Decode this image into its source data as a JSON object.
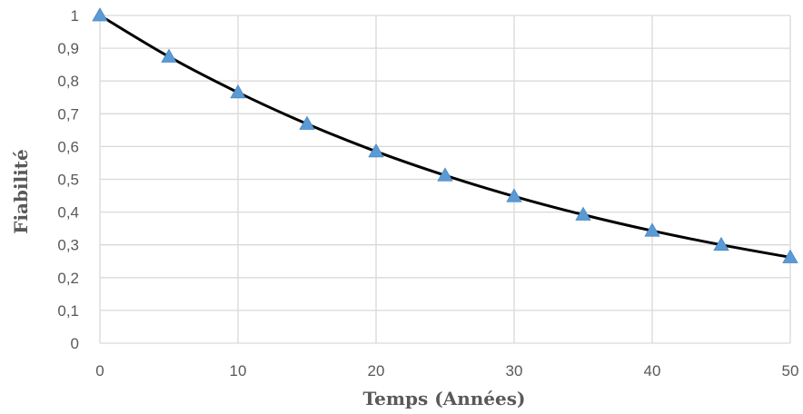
{
  "chart_data": {
    "type": "line",
    "title": "",
    "xlabel": "Temps (Années)",
    "ylabel": "Fiabilité",
    "xlim": [
      0,
      50
    ],
    "ylim": [
      0,
      1
    ],
    "x_ticks": [
      0,
      10,
      20,
      30,
      40,
      50
    ],
    "y_ticks": [
      0,
      0.1,
      0.2,
      0.3,
      0.4,
      0.5,
      0.6,
      0.7,
      0.8,
      0.9,
      1
    ],
    "y_tick_labels": [
      "0",
      "0,1",
      "0,2",
      "0,3",
      "0,4",
      "0,5",
      "0,6",
      "0,7",
      "0,8",
      "0,9",
      "1"
    ],
    "x_tick_labels": [
      "0",
      "10",
      "20",
      "30",
      "40",
      "50"
    ],
    "grid": true,
    "legend": "none",
    "series": [
      {
        "x": [
          0,
          5,
          10,
          15,
          20,
          25,
          30,
          35,
          40,
          45,
          50
        ],
        "values": [
          1.0,
          0.874,
          0.765,
          0.669,
          0.585,
          0.512,
          0.448,
          0.392,
          0.343,
          0.3,
          0.262
        ],
        "color": "#000000",
        "marker": "triangle",
        "marker_color": "#5b9bd5"
      }
    ]
  }
}
